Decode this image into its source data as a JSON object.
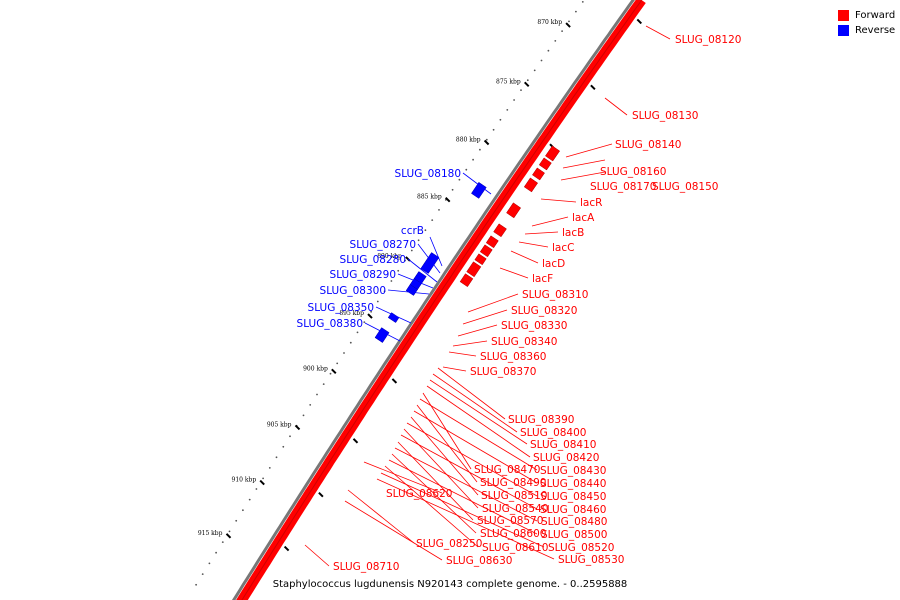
{
  "legend": {
    "forward": {
      "label": "Forward",
      "color": "#ff0000"
    },
    "reverse": {
      "label": "Reverse",
      "color": "#0000ff"
    }
  },
  "caption": "Staphylococcus lugdunensis N920143 complete genome. - 0..2595888",
  "ticks": [
    "870 kbp",
    "875 kbp",
    "880 kbp",
    "885 kbp",
    "890 kbp",
    "895 kbp",
    "900 kbp",
    "905 kbp",
    "910 kbp",
    "915 kbp"
  ],
  "forward_labels": [
    "SLUG_08120",
    "SLUG_08130",
    "SLUG_08140",
    "SLUG_08160",
    "SLUG_08170",
    "SLUG_08150",
    "lacR",
    "lacA",
    "lacB",
    "lacC",
    "lacD",
    "lacF",
    "SLUG_08310",
    "SLUG_08320",
    "SLUG_08330",
    "SLUG_08340",
    "SLUG_08360",
    "SLUG_08370",
    "SLUG_08390",
    "SLUG_08400",
    "SLUG_08410",
    "SLUG_08420",
    "SLUG_08470",
    "SLUG_08430",
    "SLUG_08490",
    "SLUG_08440",
    "SLUG_08510",
    "SLUG_08450",
    "SLUG_08620",
    "SLUG_08540",
    "SLUG_08460",
    "SLUG_08570",
    "SLUG_08480",
    "SLUG_08600",
    "SLUG_08500",
    "SLUG_08250",
    "SLUG_08610",
    "SLUG_08520",
    "SLUG_08630",
    "SLUG_08530",
    "SLUG_08710"
  ],
  "reverse_labels": [
    "SLUG_08180",
    "ccrB",
    "SLUG_08270",
    "SLUG_08280",
    "SLUG_08290",
    "SLUG_08300",
    "SLUG_08350",
    "SLUG_08380"
  ]
}
